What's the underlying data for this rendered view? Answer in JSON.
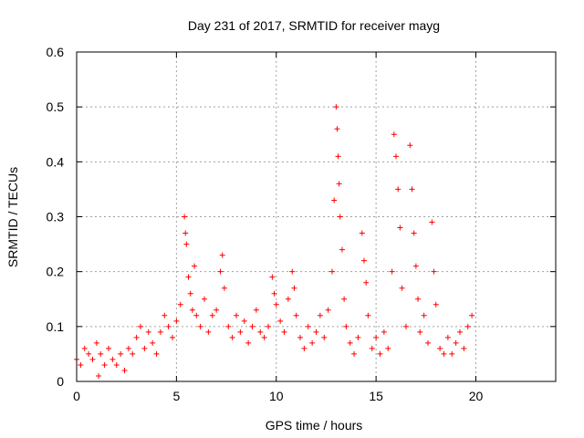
{
  "chart_data": {
    "type": "scatter",
    "title": "Day 231 of 2017, SRMTID for receiver mayg",
    "xlabel": "GPS time / hours",
    "ylabel": "SRMTID / TECUs",
    "xlim": [
      0,
      24
    ],
    "ylim": [
      0,
      0.6
    ],
    "x_ticks": [
      0,
      5,
      10,
      15,
      20
    ],
    "x_tick_labels": [
      "0",
      "5",
      "10",
      "15",
      "20"
    ],
    "y_ticks": [
      0,
      0.1,
      0.2,
      0.3,
      0.4,
      0.5,
      0.6
    ],
    "y_tick_labels": [
      "0",
      "0.1",
      "0.2",
      "0.3",
      "0.4",
      "0.5",
      "0.6"
    ],
    "grid": true,
    "marker": "+",
    "series": [
      {
        "name": "SRMTID",
        "color": "#ff0000",
        "points": [
          [
            0.0,
            0.04
          ],
          [
            0.2,
            0.03
          ],
          [
            0.4,
            0.06
          ],
          [
            0.6,
            0.05
          ],
          [
            0.8,
            0.04
          ],
          [
            1.0,
            0.07
          ],
          [
            1.1,
            0.01
          ],
          [
            1.2,
            0.05
          ],
          [
            1.4,
            0.03
          ],
          [
            1.6,
            0.06
          ],
          [
            1.8,
            0.04
          ],
          [
            2.0,
            0.03
          ],
          [
            2.2,
            0.05
          ],
          [
            2.4,
            0.02
          ],
          [
            2.6,
            0.06
          ],
          [
            2.8,
            0.05
          ],
          [
            3.0,
            0.08
          ],
          [
            3.2,
            0.1
          ],
          [
            3.4,
            0.06
          ],
          [
            3.6,
            0.09
          ],
          [
            3.8,
            0.07
          ],
          [
            4.0,
            0.05
          ],
          [
            4.2,
            0.09
          ],
          [
            4.4,
            0.12
          ],
          [
            4.6,
            0.1
          ],
          [
            4.8,
            0.08
          ],
          [
            5.0,
            0.11
          ],
          [
            5.2,
            0.14
          ],
          [
            5.4,
            0.3
          ],
          [
            5.45,
            0.27
          ],
          [
            5.5,
            0.25
          ],
          [
            5.6,
            0.19
          ],
          [
            5.7,
            0.16
          ],
          [
            5.8,
            0.13
          ],
          [
            5.9,
            0.21
          ],
          [
            6.0,
            0.12
          ],
          [
            6.2,
            0.1
          ],
          [
            6.4,
            0.15
          ],
          [
            6.6,
            0.09
          ],
          [
            6.8,
            0.12
          ],
          [
            7.0,
            0.13
          ],
          [
            7.2,
            0.2
          ],
          [
            7.3,
            0.23
          ],
          [
            7.4,
            0.17
          ],
          [
            7.6,
            0.1
          ],
          [
            7.8,
            0.08
          ],
          [
            8.0,
            0.12
          ],
          [
            8.2,
            0.09
          ],
          [
            8.4,
            0.11
          ],
          [
            8.6,
            0.07
          ],
          [
            8.8,
            0.1
          ],
          [
            9.0,
            0.13
          ],
          [
            9.2,
            0.09
          ],
          [
            9.4,
            0.08
          ],
          [
            9.6,
            0.1
          ],
          [
            9.8,
            0.19
          ],
          [
            9.9,
            0.16
          ],
          [
            10.0,
            0.14
          ],
          [
            10.2,
            0.11
          ],
          [
            10.4,
            0.09
          ],
          [
            10.6,
            0.15
          ],
          [
            10.8,
            0.2
          ],
          [
            10.9,
            0.17
          ],
          [
            11.0,
            0.12
          ],
          [
            11.2,
            0.08
          ],
          [
            11.4,
            0.06
          ],
          [
            11.6,
            0.1
          ],
          [
            11.8,
            0.07
          ],
          [
            12.0,
            0.09
          ],
          [
            12.2,
            0.12
          ],
          [
            12.4,
            0.08
          ],
          [
            12.6,
            0.13
          ],
          [
            12.8,
            0.2
          ],
          [
            12.9,
            0.33
          ],
          [
            13.0,
            0.5
          ],
          [
            13.05,
            0.46
          ],
          [
            13.1,
            0.41
          ],
          [
            13.15,
            0.36
          ],
          [
            13.2,
            0.3
          ],
          [
            13.3,
            0.24
          ],
          [
            13.4,
            0.15
          ],
          [
            13.5,
            0.1
          ],
          [
            13.7,
            0.07
          ],
          [
            13.9,
            0.05
          ],
          [
            14.1,
            0.08
          ],
          [
            14.3,
            0.27
          ],
          [
            14.4,
            0.22
          ],
          [
            14.5,
            0.18
          ],
          [
            14.6,
            0.12
          ],
          [
            14.8,
            0.06
          ],
          [
            15.0,
            0.08
          ],
          [
            15.2,
            0.05
          ],
          [
            15.4,
            0.09
          ],
          [
            15.6,
            0.06
          ],
          [
            15.8,
            0.2
          ],
          [
            15.9,
            0.45
          ],
          [
            16.0,
            0.41
          ],
          [
            16.1,
            0.35
          ],
          [
            16.2,
            0.28
          ],
          [
            16.3,
            0.17
          ],
          [
            16.5,
            0.1
          ],
          [
            16.7,
            0.43
          ],
          [
            16.8,
            0.35
          ],
          [
            16.9,
            0.27
          ],
          [
            17.0,
            0.21
          ],
          [
            17.1,
            0.15
          ],
          [
            17.2,
            0.09
          ],
          [
            17.4,
            0.12
          ],
          [
            17.6,
            0.07
          ],
          [
            17.8,
            0.29
          ],
          [
            17.9,
            0.2
          ],
          [
            18.0,
            0.14
          ],
          [
            18.2,
            0.06
          ],
          [
            18.4,
            0.05
          ],
          [
            18.6,
            0.08
          ],
          [
            18.8,
            0.05
          ],
          [
            19.0,
            0.07
          ],
          [
            19.2,
            0.09
          ],
          [
            19.4,
            0.06
          ],
          [
            19.6,
            0.1
          ],
          [
            19.8,
            0.12
          ]
        ]
      }
    ]
  }
}
